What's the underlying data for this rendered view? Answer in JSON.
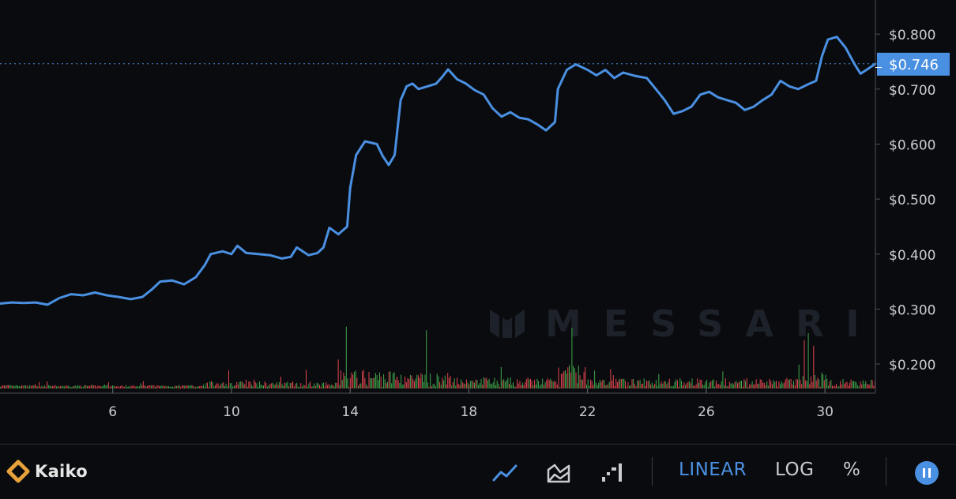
{
  "chart_data": {
    "type": "line",
    "y_ticks": [
      "$0.800",
      "$0.700",
      "$0.600",
      "$0.500",
      "$0.400",
      "$0.300",
      "$0.200"
    ],
    "y_tick_values": [
      0.8,
      0.7,
      0.6,
      0.5,
      0.4,
      0.3,
      0.2
    ],
    "x_ticks": [
      "6",
      "10",
      "14",
      "18",
      "22",
      "26",
      "30"
    ],
    "x_tick_values": [
      6,
      10,
      14,
      18,
      22,
      26,
      30
    ],
    "xlim": [
      2.2,
      31.7
    ],
    "ylim": [
      0.147,
      0.862
    ],
    "current_price": 0.746,
    "current_price_label": "$0.746",
    "watermark": "MESSARI",
    "series": [
      {
        "color": "#4a90e2",
        "points": [
          [
            2.2,
            0.31
          ],
          [
            2.6,
            0.312
          ],
          [
            3.0,
            0.311
          ],
          [
            3.4,
            0.312
          ],
          [
            3.8,
            0.308
          ],
          [
            4.2,
            0.32
          ],
          [
            4.6,
            0.327
          ],
          [
            5.0,
            0.325
          ],
          [
            5.4,
            0.33
          ],
          [
            5.8,
            0.325
          ],
          [
            6.2,
            0.322
          ],
          [
            6.6,
            0.318
          ],
          [
            7.0,
            0.322
          ],
          [
            7.3,
            0.335
          ],
          [
            7.6,
            0.35
          ],
          [
            8.0,
            0.352
          ],
          [
            8.4,
            0.345
          ],
          [
            8.8,
            0.358
          ],
          [
            9.1,
            0.38
          ],
          [
            9.3,
            0.4
          ],
          [
            9.7,
            0.405
          ],
          [
            10.0,
            0.4
          ],
          [
            10.2,
            0.415
          ],
          [
            10.5,
            0.402
          ],
          [
            10.9,
            0.4
          ],
          [
            11.3,
            0.398
          ],
          [
            11.7,
            0.392
          ],
          [
            12.0,
            0.395
          ],
          [
            12.2,
            0.412
          ],
          [
            12.6,
            0.398
          ],
          [
            12.9,
            0.402
          ],
          [
            13.1,
            0.412
          ],
          [
            13.3,
            0.448
          ],
          [
            13.6,
            0.436
          ],
          [
            13.9,
            0.45
          ],
          [
            14.0,
            0.52
          ],
          [
            14.2,
            0.58
          ],
          [
            14.5,
            0.605
          ],
          [
            14.9,
            0.6
          ],
          [
            15.1,
            0.578
          ],
          [
            15.3,
            0.562
          ],
          [
            15.5,
            0.58
          ],
          [
            15.7,
            0.68
          ],
          [
            15.9,
            0.705
          ],
          [
            16.1,
            0.71
          ],
          [
            16.3,
            0.7
          ],
          [
            16.6,
            0.705
          ],
          [
            16.9,
            0.71
          ],
          [
            17.1,
            0.722
          ],
          [
            17.3,
            0.736
          ],
          [
            17.6,
            0.718
          ],
          [
            17.9,
            0.71
          ],
          [
            18.2,
            0.698
          ],
          [
            18.5,
            0.69
          ],
          [
            18.8,
            0.665
          ],
          [
            19.1,
            0.65
          ],
          [
            19.4,
            0.658
          ],
          [
            19.7,
            0.648
          ],
          [
            20.0,
            0.645
          ],
          [
            20.3,
            0.636
          ],
          [
            20.6,
            0.625
          ],
          [
            20.9,
            0.64
          ],
          [
            21.0,
            0.7
          ],
          [
            21.3,
            0.735
          ],
          [
            21.6,
            0.745
          ],
          [
            22.0,
            0.735
          ],
          [
            22.3,
            0.725
          ],
          [
            22.6,
            0.735
          ],
          [
            22.9,
            0.72
          ],
          [
            23.2,
            0.73
          ],
          [
            23.6,
            0.724
          ],
          [
            24.0,
            0.72
          ],
          [
            24.3,
            0.7
          ],
          [
            24.6,
            0.68
          ],
          [
            24.9,
            0.655
          ],
          [
            25.2,
            0.66
          ],
          [
            25.5,
            0.668
          ],
          [
            25.8,
            0.69
          ],
          [
            26.1,
            0.695
          ],
          [
            26.4,
            0.685
          ],
          [
            26.7,
            0.68
          ],
          [
            27.0,
            0.675
          ],
          [
            27.3,
            0.662
          ],
          [
            27.6,
            0.668
          ],
          [
            27.9,
            0.68
          ],
          [
            28.2,
            0.69
          ],
          [
            28.5,
            0.715
          ],
          [
            28.8,
            0.705
          ],
          [
            29.1,
            0.7
          ],
          [
            29.4,
            0.708
          ],
          [
            29.7,
            0.715
          ],
          [
            29.9,
            0.76
          ],
          [
            30.1,
            0.79
          ],
          [
            30.4,
            0.795
          ],
          [
            30.7,
            0.775
          ],
          [
            31.0,
            0.745
          ],
          [
            31.2,
            0.728
          ],
          [
            31.4,
            0.735
          ],
          [
            31.7,
            0.746
          ]
        ]
      }
    ],
    "volume_seed": 7,
    "up_color": "#3fa64a",
    "down_color": "#e0454f",
    "line_color": "#4a90e2",
    "grid": false
  },
  "toolbar": {
    "brand": "Kaiko",
    "chart_type_icons": [
      "line-chart-icon",
      "area-chart-icon",
      "step-chart-icon"
    ],
    "scale_options": [
      "LINEAR",
      "LOG",
      "%"
    ],
    "active_scale": "LINEAR"
  }
}
